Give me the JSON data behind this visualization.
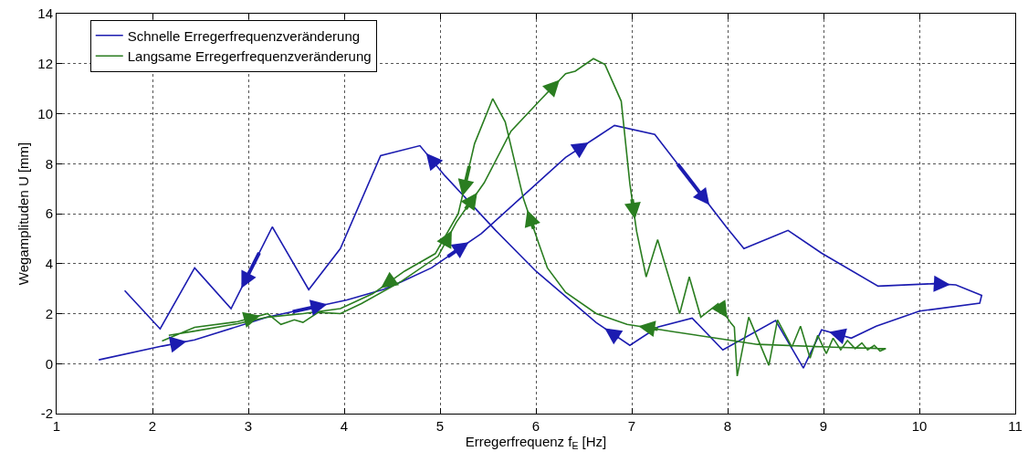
{
  "chart_data": {
    "type": "line",
    "xlabel": "Erregerfrequenz f$_{E}$ [Hz]",
    "ylabel": "Wegamplituden U [mm]",
    "xlim": [
      1,
      11
    ],
    "xticks": [
      1,
      2,
      3,
      4,
      5,
      6,
      7,
      8,
      9,
      10,
      11
    ],
    "ylim": [
      -2,
      14
    ],
    "yticks": [
      -2,
      0,
      2,
      4,
      6,
      8,
      10,
      12,
      14
    ],
    "grid": true,
    "legend": "top left",
    "line_style": "solid",
    "marker": "none",
    "series": [
      {
        "name": "Schnelle Erregerfrequenzveränderung",
        "color": "#1c1cb0",
        "x": [
          1.44,
          2.1,
          2.44,
          3.2,
          4.03,
          4.41,
          4.6,
          4.91,
          5.43,
          6.31,
          6.63,
          6.82,
          7.24,
          8.0,
          8.17,
          8.63,
          8.98,
          9.57,
          10.15,
          10.38,
          10.65,
          10.63,
          10.0,
          9.55,
          9.29,
          8.98,
          8.79,
          8.5,
          7.95,
          7.63,
          7.27,
          6.98,
          6.63,
          6.0,
          5.58,
          5.05,
          4.79,
          4.38,
          3.96,
          3.63,
          3.25,
          2.82,
          2.44,
          2.08,
          1.71
        ],
        "values": [
          0.15,
          0.7,
          0.95,
          1.86,
          2.55,
          2.97,
          3.28,
          3.83,
          5.2,
          8.25,
          9.05,
          9.53,
          9.17,
          5.4,
          4.6,
          5.33,
          4.42,
          3.1,
          3.2,
          3.15,
          2.73,
          2.42,
          2.1,
          1.5,
          1.02,
          1.35,
          -0.18,
          1.72,
          0.55,
          1.82,
          1.46,
          0.73,
          1.64,
          3.7,
          5.33,
          7.52,
          8.72,
          8.32,
          4.6,
          2.96,
          5.47,
          2.2,
          3.83,
          1.39,
          2.92
        ]
      },
      {
        "name": "Langsame Erregerfrequenzveränderung",
        "color": "#2a7d20",
        "x": [
          2.1,
          2.44,
          2.89,
          3.2,
          3.34,
          3.48,
          3.57,
          3.73,
          3.96,
          4.18,
          4.6,
          4.98,
          5.17,
          5.46,
          5.74,
          6.06,
          6.31,
          6.41,
          6.6,
          6.72,
          6.89,
          6.98,
          7.05,
          7.15,
          7.27,
          7.5,
          7.6,
          7.72,
          7.9,
          8.03,
          8.07,
          8.1,
          8.22,
          8.43,
          8.52,
          8.67,
          8.76,
          8.86,
          8.94,
          9.03,
          9.1,
          9.18,
          9.25,
          9.33,
          9.4,
          9.46,
          9.53,
          9.59,
          9.65,
          9.1,
          8.31,
          8.0,
          7.43,
          6.95,
          6.63,
          6.31,
          6.12,
          6.03,
          5.87,
          5.68,
          5.55,
          5.36,
          5.19,
          4.95,
          4.63,
          4.3,
          3.96,
          3.57,
          3.2,
          2.89,
          2.44,
          2.17
        ],
        "values": [
          0.9,
          1.45,
          1.68,
          2.0,
          1.57,
          1.75,
          1.65,
          2.05,
          2.0,
          2.4,
          3.3,
          4.3,
          5.66,
          7.23,
          9.3,
          10.6,
          11.6,
          11.7,
          12.2,
          11.97,
          10.5,
          7.2,
          5.3,
          3.47,
          4.96,
          2.0,
          3.47,
          1.86,
          2.4,
          1.64,
          1.46,
          -0.5,
          1.86,
          -0.07,
          1.75,
          0.66,
          1.5,
          0.22,
          1.13,
          0.4,
          1.02,
          0.55,
          0.92,
          0.6,
          0.83,
          0.55,
          0.73,
          0.5,
          0.6,
          0.66,
          0.77,
          0.95,
          1.28,
          1.57,
          2.0,
          2.85,
          3.83,
          4.8,
          6.6,
          9.67,
          10.6,
          8.8,
          6.0,
          4.4,
          3.7,
          2.8,
          2.2,
          2.0,
          1.86,
          1.6,
          1.3,
          1.13
        ]
      }
    ]
  }
}
